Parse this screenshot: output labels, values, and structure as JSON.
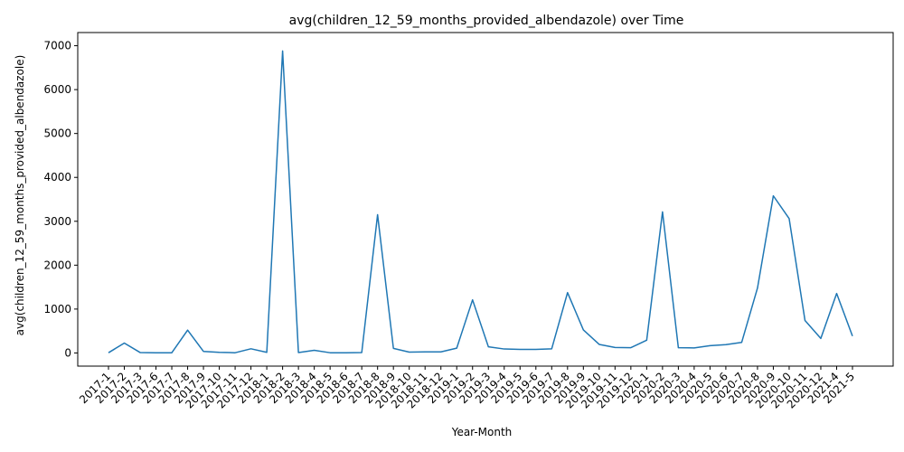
{
  "chart_data": {
    "type": "line",
    "title": "avg(children_12_59_months_provided_albendazole) over Time",
    "xlabel": "Year-Month",
    "ylabel": "avg(children_12_59_months_provided_albendazole)",
    "ylim": [
      -300,
      7300
    ],
    "yticks": [
      0,
      1000,
      2000,
      3000,
      4000,
      5000,
      6000,
      7000
    ],
    "grid": false,
    "line_color": "#1f77b4",
    "categories": [
      "2017-1",
      "2017-2",
      "2017-3",
      "2017-6",
      "2017-7",
      "2017-8",
      "2017-9",
      "2017-10",
      "2017-11",
      "2017-12",
      "2018-1",
      "2018-2",
      "2018-3",
      "2018-4",
      "2018-5",
      "2018-6",
      "2018-7",
      "2018-8",
      "2018-9",
      "2018-10",
      "2018-11",
      "2018-12",
      "2019-1",
      "2019-2",
      "2019-3",
      "2019-4",
      "2019-5",
      "2019-6",
      "2019-7",
      "2019-8",
      "2019-9",
      "2019-10",
      "2019-11",
      "2019-12",
      "2020-1",
      "2020-2",
      "2020-3",
      "2020-4",
      "2020-5",
      "2020-6",
      "2020-7",
      "2020-8",
      "2020-9",
      "2020-10",
      "2020-11",
      "2020-12",
      "2021-4",
      "2021-5"
    ],
    "values": [
      5,
      225,
      10,
      5,
      5,
      520,
      35,
      15,
      5,
      95,
      15,
      6880,
      10,
      60,
      5,
      5,
      10,
      3150,
      105,
      20,
      25,
      25,
      110,
      1210,
      140,
      90,
      80,
      80,
      95,
      1375,
      525,
      195,
      125,
      120,
      290,
      3215,
      120,
      115,
      165,
      190,
      240,
      1480,
      3580,
      3060,
      740,
      330,
      1355,
      385
    ]
  }
}
